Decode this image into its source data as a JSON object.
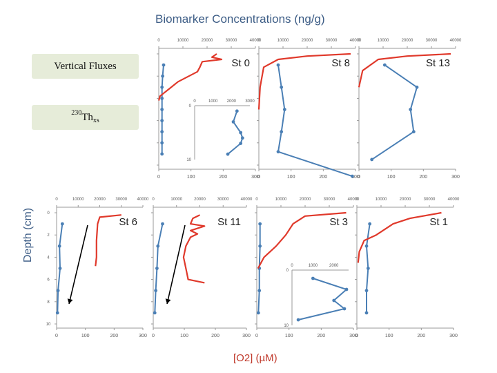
{
  "title": "Biomarker Concentrations (ng/g)",
  "y_axis_label": "Depth (cm)",
  "x_axis_label": "[O2] (µM)",
  "legend": {
    "vertical_fluxes": "Vertical Fluxes",
    "thxs_sup": "230",
    "thxs_main": "Th",
    "thxs_sub": "xs"
  },
  "colors": {
    "o2": "#4a7fb5",
    "biomarker": "#e0392b",
    "axis": "#999999",
    "text": "#555555"
  },
  "chart_data": [
    {
      "type": "line",
      "title": "St 0",
      "x_top": {
        "ticks": [
          0,
          10000,
          20000,
          30000,
          40000
        ],
        "lim": [
          0,
          40000
        ]
      },
      "x_bottom": {
        "ticks": [
          0,
          100,
          200,
          300
        ],
        "lim": [
          0,
          300
        ]
      },
      "ylim": [
        0,
        10
      ],
      "show_bottom_axis": true,
      "y_tick_labels": false,
      "series": [
        {
          "name": "O2",
          "marker": true,
          "points": [
            [
              15,
              1
            ],
            [
              12,
              2
            ],
            [
              10,
              3
            ],
            [
              10,
              4
            ],
            [
              10,
              5
            ],
            [
              10,
              6
            ],
            [
              10,
              7
            ],
            [
              10,
              8
            ],
            [
              10,
              9
            ]
          ]
        },
        {
          "name": "Biomarker",
          "marker": false,
          "points": [
            [
              24000,
              0
            ],
            [
              22000,
              0.3
            ],
            [
              26000,
              0.5
            ],
            [
              18000,
              0.7
            ],
            [
              17000,
              1.2
            ],
            [
              16000,
              1.6
            ],
            [
              8000,
              2.5
            ],
            [
              4000,
              3.2
            ],
            [
              500,
              3.8
            ],
            [
              0,
              4.2
            ]
          ]
        }
      ],
      "inset": {
        "x_ticks": [
          0,
          1000,
          2000,
          3000
        ],
        "xlim": [
          0,
          3000
        ],
        "y_ticks": [
          0,
          10
        ],
        "ylim": [
          0,
          10
        ],
        "points": [
          [
            2300,
            1
          ],
          [
            2100,
            3
          ],
          [
            2500,
            5
          ],
          [
            2600,
            6
          ],
          [
            2500,
            7
          ],
          [
            1800,
            9
          ]
        ]
      }
    },
    {
      "type": "line",
      "title": "St 8",
      "x_top": {
        "ticks": [
          0,
          10000,
          20000,
          30000,
          40000
        ],
        "lim": [
          0,
          40000
        ]
      },
      "x_bottom": {
        "ticks": [
          0,
          100,
          200,
          300
        ],
        "lim": [
          0,
          300
        ]
      },
      "ylim": [
        0,
        10
      ],
      "show_bottom_axis": true,
      "y_tick_labels": false,
      "series": [
        {
          "name": "O2",
          "marker": true,
          "points": [
            [
              60,
              1
            ],
            [
              70,
              3
            ],
            [
              80,
              5
            ],
            [
              70,
              7
            ],
            [
              60,
              8.8
            ],
            [
              290,
              11
            ]
          ]
        },
        {
          "name": "Biomarker",
          "marker": false,
          "points": [
            [
              38000,
              0
            ],
            [
              20000,
              0.2
            ],
            [
              8000,
              0.5
            ],
            [
              2000,
              1.2
            ],
            [
              500,
              3
            ],
            [
              0,
              5
            ]
          ]
        }
      ]
    },
    {
      "type": "line",
      "title": "St 13",
      "x_top": {
        "ticks": [
          0,
          10000,
          20000,
          30000,
          40000
        ],
        "lim": [
          0,
          40000
        ]
      },
      "x_bottom": {
        "ticks": [
          0,
          100,
          200,
          300
        ],
        "lim": [
          0,
          300
        ]
      },
      "ylim": [
        0,
        10
      ],
      "show_bottom_axis": true,
      "y_tick_labels": false,
      "series": [
        {
          "name": "O2",
          "marker": true,
          "points": [
            [
              80,
              1
            ],
            [
              180,
              3
            ],
            [
              160,
              5
            ],
            [
              170,
              7
            ],
            [
              40,
              9.5
            ]
          ]
        },
        {
          "name": "Biomarker",
          "marker": false,
          "points": [
            [
              38000,
              0
            ],
            [
              20000,
              0.2
            ],
            [
              8000,
              0.5
            ],
            [
              1500,
              1.5
            ],
            [
              0,
              3
            ]
          ]
        }
      ]
    },
    {
      "type": "line",
      "title": "St 6",
      "x_top": {
        "ticks": [
          0,
          10000,
          20000,
          30000,
          40000
        ],
        "lim": [
          0,
          40000
        ]
      },
      "x_bottom": {
        "ticks": [
          0,
          100,
          200,
          300
        ],
        "lim": [
          0,
          300
        ]
      },
      "ylim": [
        0,
        10
      ],
      "show_bottom_axis": true,
      "y_tick_labels": true,
      "y_ticks": [
        0,
        2,
        4,
        6,
        8,
        10
      ],
      "series": [
        {
          "name": "O2",
          "marker": true,
          "points": [
            [
              20,
              1
            ],
            [
              10,
              3
            ],
            [
              12,
              5
            ],
            [
              5,
              7
            ],
            [
              3,
              9
            ]
          ]
        },
        {
          "name": "Biomarker",
          "marker": false,
          "points": [
            [
              30000,
              0.2
            ],
            [
              20000,
              0.4
            ],
            [
              19000,
              1
            ],
            [
              18500,
              2.5
            ],
            [
              18500,
              4
            ],
            [
              18000,
              4.8
            ]
          ]
        }
      ]
    },
    {
      "type": "line",
      "title": "St 11",
      "x_top": {
        "ticks": [
          0,
          10000,
          20000,
          30000,
          40000
        ],
        "lim": [
          0,
          40000
        ]
      },
      "x_bottom": {
        "ticks": [
          0,
          100,
          200,
          300
        ],
        "lim": [
          0,
          300
        ]
      },
      "ylim": [
        0,
        10
      ],
      "show_bottom_axis": true,
      "y_tick_labels": false,
      "series": [
        {
          "name": "O2",
          "marker": true,
          "points": [
            [
              30,
              1
            ],
            [
              15,
              3
            ],
            [
              12,
              5
            ],
            [
              8,
              7
            ],
            [
              5,
              9
            ]
          ]
        },
        {
          "name": "Biomarker",
          "marker": false,
          "points": [
            [
              20000,
              0.2
            ],
            [
              17000,
              0.5
            ],
            [
              16000,
              1
            ],
            [
              22000,
              1.2
            ],
            [
              16000,
              1.6
            ],
            [
              19000,
              1.9
            ],
            [
              16000,
              2.2
            ],
            [
              14000,
              3
            ],
            [
              13000,
              4
            ],
            [
              14000,
              5
            ],
            [
              15000,
              6
            ],
            [
              22000,
              6.3
            ]
          ]
        }
      ]
    },
    {
      "type": "line",
      "title": "St 3",
      "x_top": {
        "ticks": [
          0,
          10000,
          20000,
          30000,
          40000
        ],
        "lim": [
          0,
          40000
        ]
      },
      "x_bottom": {
        "ticks": [
          0,
          100,
          200,
          300
        ],
        "lim": [
          0,
          300
        ]
      },
      "ylim": [
        0,
        10
      ],
      "show_bottom_axis": true,
      "y_tick_labels": false,
      "series": [
        {
          "name": "O2",
          "marker": true,
          "points": [
            [
              10,
              1
            ],
            [
              10,
              3
            ],
            [
              8,
              5
            ],
            [
              8,
              7
            ],
            [
              5,
              9
            ]
          ]
        },
        {
          "name": "Biomarker",
          "marker": false,
          "points": [
            [
              37000,
              0
            ],
            [
              20000,
              0.3
            ],
            [
              15000,
              1
            ],
            [
              12000,
              2
            ],
            [
              8000,
              3
            ],
            [
              3000,
              4
            ],
            [
              500,
              5
            ]
          ]
        }
      ],
      "inset": {
        "x_ticks": [
          0,
          1000,
          2000
        ],
        "xlim": [
          0,
          2700
        ],
        "y_ticks": [
          0,
          10
        ],
        "ylim": [
          0,
          10
        ],
        "points": [
          [
            1000,
            1.5
          ],
          [
            2600,
            3.5
          ],
          [
            2000,
            5.5
          ],
          [
            2500,
            7
          ],
          [
            300,
            9
          ]
        ]
      }
    },
    {
      "type": "line",
      "title": "St 1",
      "x_top": {
        "ticks": [
          0,
          10000,
          20000,
          30000,
          40000
        ],
        "lim": [
          0,
          40000
        ]
      },
      "x_bottom": {
        "ticks": [
          0,
          100,
          200,
          300
        ],
        "lim": [
          0,
          300
        ]
      },
      "ylim": [
        0,
        10
      ],
      "show_bottom_axis": true,
      "y_tick_labels": false,
      "series": [
        {
          "name": "O2",
          "marker": true,
          "points": [
            [
              40,
              1
            ],
            [
              30,
              3
            ],
            [
              35,
              5
            ],
            [
              30,
              7
            ],
            [
              30,
              9
            ]
          ]
        },
        {
          "name": "Biomarker",
          "marker": false,
          "points": [
            [
              35000,
              0
            ],
            [
              22000,
              0.5
            ],
            [
              15000,
              1
            ],
            [
              8000,
              2
            ],
            [
              3000,
              2.5
            ],
            [
              1000,
              3.5
            ],
            [
              500,
              4.5
            ]
          ]
        }
      ]
    }
  ]
}
